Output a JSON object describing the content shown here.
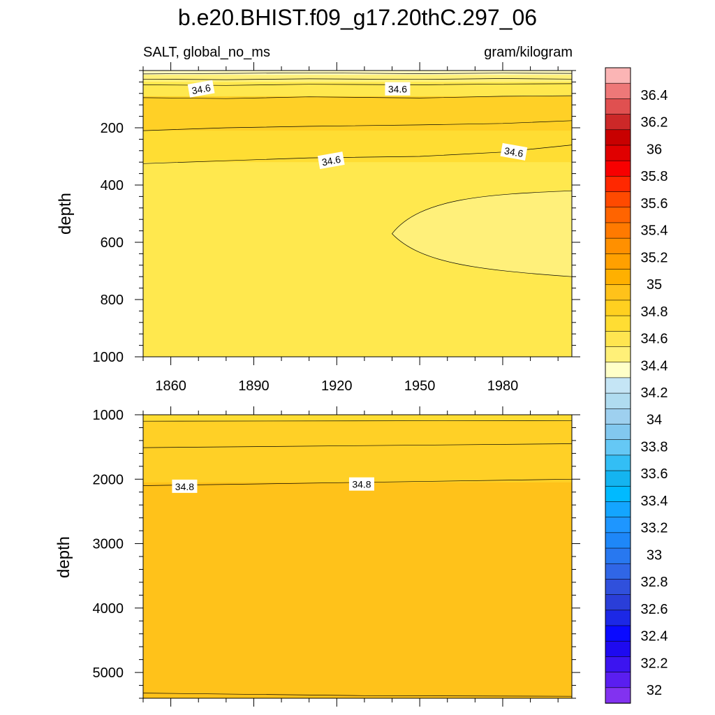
{
  "title": "b.e20.BHIST.f09_g17.20thC.297_06",
  "chart_data": [
    {
      "panel": "upper",
      "type": "contour",
      "left_string": "SALT, global_no_ms",
      "right_string": "gram/kilogram",
      "xlabel": "",
      "ylabel": "depth",
      "xlim": [
        1850,
        2005
      ],
      "ylim": [
        1000,
        0
      ],
      "x_ticks": [
        1860,
        1890,
        1920,
        1950,
        1980
      ],
      "x_tick_labels": [
        "1860",
        "1890",
        "1920",
        "1950",
        "1980"
      ],
      "y_ticks": [
        200,
        400,
        600,
        800,
        1000
      ],
      "y_tick_labels": [
        "200",
        "400",
        "600",
        "800",
        "1000"
      ],
      "fill_levels": [
        {
          "from": 0,
          "to": 15,
          "value": 34.3
        },
        {
          "from": 15,
          "to": 40,
          "value": 34.4
        },
        {
          "from": 40,
          "to": 90,
          "value": 34.5
        },
        {
          "from": 90,
          "to": 210,
          "value": 34.7
        },
        {
          "from": 210,
          "to": 320,
          "value": 34.6
        },
        {
          "from": 320,
          "to": 1000,
          "value": 34.5
        }
      ],
      "freshwater_tongue": {
        "x_start": 1940,
        "depth_top": 420,
        "depth_bottom": 720,
        "value": 34.4
      },
      "contour_lines": [
        {
          "x": [
            1850,
            1880,
            1910,
            1950,
            1980,
            2005
          ],
          "depth": [
            12,
            10,
            8,
            11,
            9,
            10
          ]
        },
        {
          "x": [
            1850,
            1880,
            1910,
            1950,
            1980,
            2005
          ],
          "depth": [
            30,
            32,
            29,
            31,
            28,
            30
          ]
        },
        {
          "x": [
            1850,
            1880,
            1910,
            1950,
            1980,
            2005
          ],
          "depth": [
            50,
            52,
            48,
            50,
            47,
            46
          ]
        },
        {
          "x": [
            1850,
            1880,
            1910,
            1950,
            1980,
            2005
          ],
          "depth": [
            95,
            98,
            92,
            96,
            90,
            88
          ]
        },
        {
          "x": [
            1850,
            1880,
            1910,
            1950,
            1980,
            2005
          ],
          "depth": [
            210,
            200,
            195,
            190,
            185,
            175
          ]
        },
        {
          "x": [
            1850,
            1880,
            1910,
            1950,
            1980,
            2005
          ],
          "depth": [
            325,
            315,
            305,
            300,
            285,
            260
          ]
        }
      ],
      "contour_labels": [
        {
          "text": "34.6",
          "x": 1871,
          "depth": 65,
          "angle": -10
        },
        {
          "text": "34.6",
          "x": 1942,
          "depth": 65,
          "angle": 0
        },
        {
          "text": "34.6",
          "x": 1918,
          "depth": 315,
          "angle": -10
        },
        {
          "text": "34.6",
          "x": 1984,
          "depth": 285,
          "angle": 10
        }
      ]
    },
    {
      "panel": "lower",
      "type": "contour",
      "xlabel": "",
      "ylabel": "depth",
      "xlim": [
        1850,
        2005
      ],
      "ylim": [
        5400,
        1000
      ],
      "y_ticks": [
        1000,
        2000,
        3000,
        4000,
        5000
      ],
      "y_tick_labels": [
        "1000",
        "2000",
        "3000",
        "4000",
        "5000"
      ],
      "fill_levels": [
        {
          "from": 1000,
          "to": 1100,
          "value": 34.6
        },
        {
          "from": 1100,
          "to": 2050,
          "value": 34.7
        },
        {
          "from": 2050,
          "to": 5400,
          "value": 34.8
        }
      ],
      "contour_lines": [
        {
          "x": [
            1850,
            2005
          ],
          "depth": [
            1100,
            1090
          ]
        },
        {
          "x": [
            1850,
            2005
          ],
          "depth": [
            1510,
            1450
          ]
        },
        {
          "x": [
            1850,
            2005
          ],
          "depth": [
            2100,
            2000
          ]
        },
        {
          "x": [
            1850,
            1930,
            2005
          ],
          "depth": [
            5320,
            5360,
            5370
          ]
        }
      ],
      "contour_labels": [
        {
          "text": "34.8",
          "x": 1865,
          "depth": 2115,
          "angle": 0
        },
        {
          "text": "34.8",
          "x": 1929,
          "depth": 2080,
          "angle": 0
        }
      ]
    }
  ],
  "colorbar": {
    "labels": [
      "36.4",
      "36.2",
      "36",
      "35.8",
      "35.6",
      "35.4",
      "35.2",
      "35",
      "34.8",
      "34.6",
      "34.4",
      "34.2",
      "34",
      "33.8",
      "33.6",
      "33.4",
      "33.2",
      "33",
      "32.8",
      "32.6",
      "32.4",
      "32.2",
      "32"
    ],
    "colors": [
      "#fbb5b5",
      "#ee7878",
      "#e05050",
      "#cc2828",
      "#c80000",
      "#e00000",
      "#f80000",
      "#ff2800",
      "#ff4a00",
      "#ff6400",
      "#ff7a00",
      "#ff9000",
      "#ffa000",
      "#ffb000",
      "#ffc21a",
      "#ffd020",
      "#ffdd33",
      "#ffe550",
      "#fff078",
      "#ffffc8",
      "#c5e5f5",
      "#b0dcf0",
      "#9ed0ef",
      "#82c8ef",
      "#65c8f5",
      "#33bef5",
      "#14b4f0",
      "#00baff",
      "#14a5ff",
      "#1e96ff",
      "#1e87f8",
      "#2878f0",
      "#3066e6",
      "#3050dc",
      "#2a3ed8",
      "#1c28e6",
      "#0a0aff",
      "#1e0af0",
      "#3c14f0",
      "#5a1ef0",
      "#8232f0"
    ]
  }
}
